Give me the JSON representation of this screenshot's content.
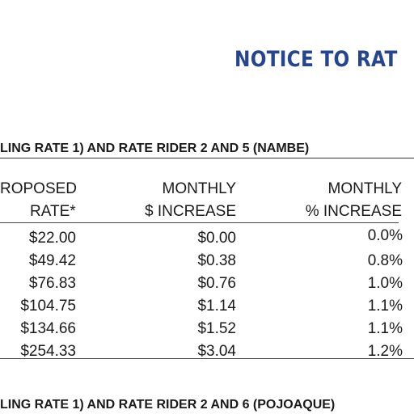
{
  "title": "NOTICE TO RAT",
  "section1_heading": "LING RATE 1) AND RATE RIDER 2 AND 5 (NAMBE)",
  "section2_heading": "LING RATE 1) AND RATE RIDER 2 AND 6 (POJOAQUE)",
  "headers": {
    "col1_line1": "ROPOSED",
    "col1_line2": "RATE*",
    "col2_line1": "MONTHLY",
    "col2_line2": "$ INCREASE",
    "col3_line1": "MONTHLY",
    "col3_line2": "% INCREASE"
  },
  "rows": [
    {
      "rate": "$22.00",
      "increase": "$0.00",
      "pct": "0.0%"
    },
    {
      "rate": "$49.42",
      "increase": "$0.38",
      "pct": "0.8%"
    },
    {
      "rate": "$76.83",
      "increase": "$0.76",
      "pct": "1.0%"
    },
    {
      "rate": "$104.75",
      "increase": "$1.14",
      "pct": "1.1%"
    },
    {
      "rate": "$134.66",
      "increase": "$1.52",
      "pct": "1.1%"
    },
    {
      "rate": "$254.33",
      "increase": "$3.04",
      "pct": "1.2%"
    }
  ]
}
